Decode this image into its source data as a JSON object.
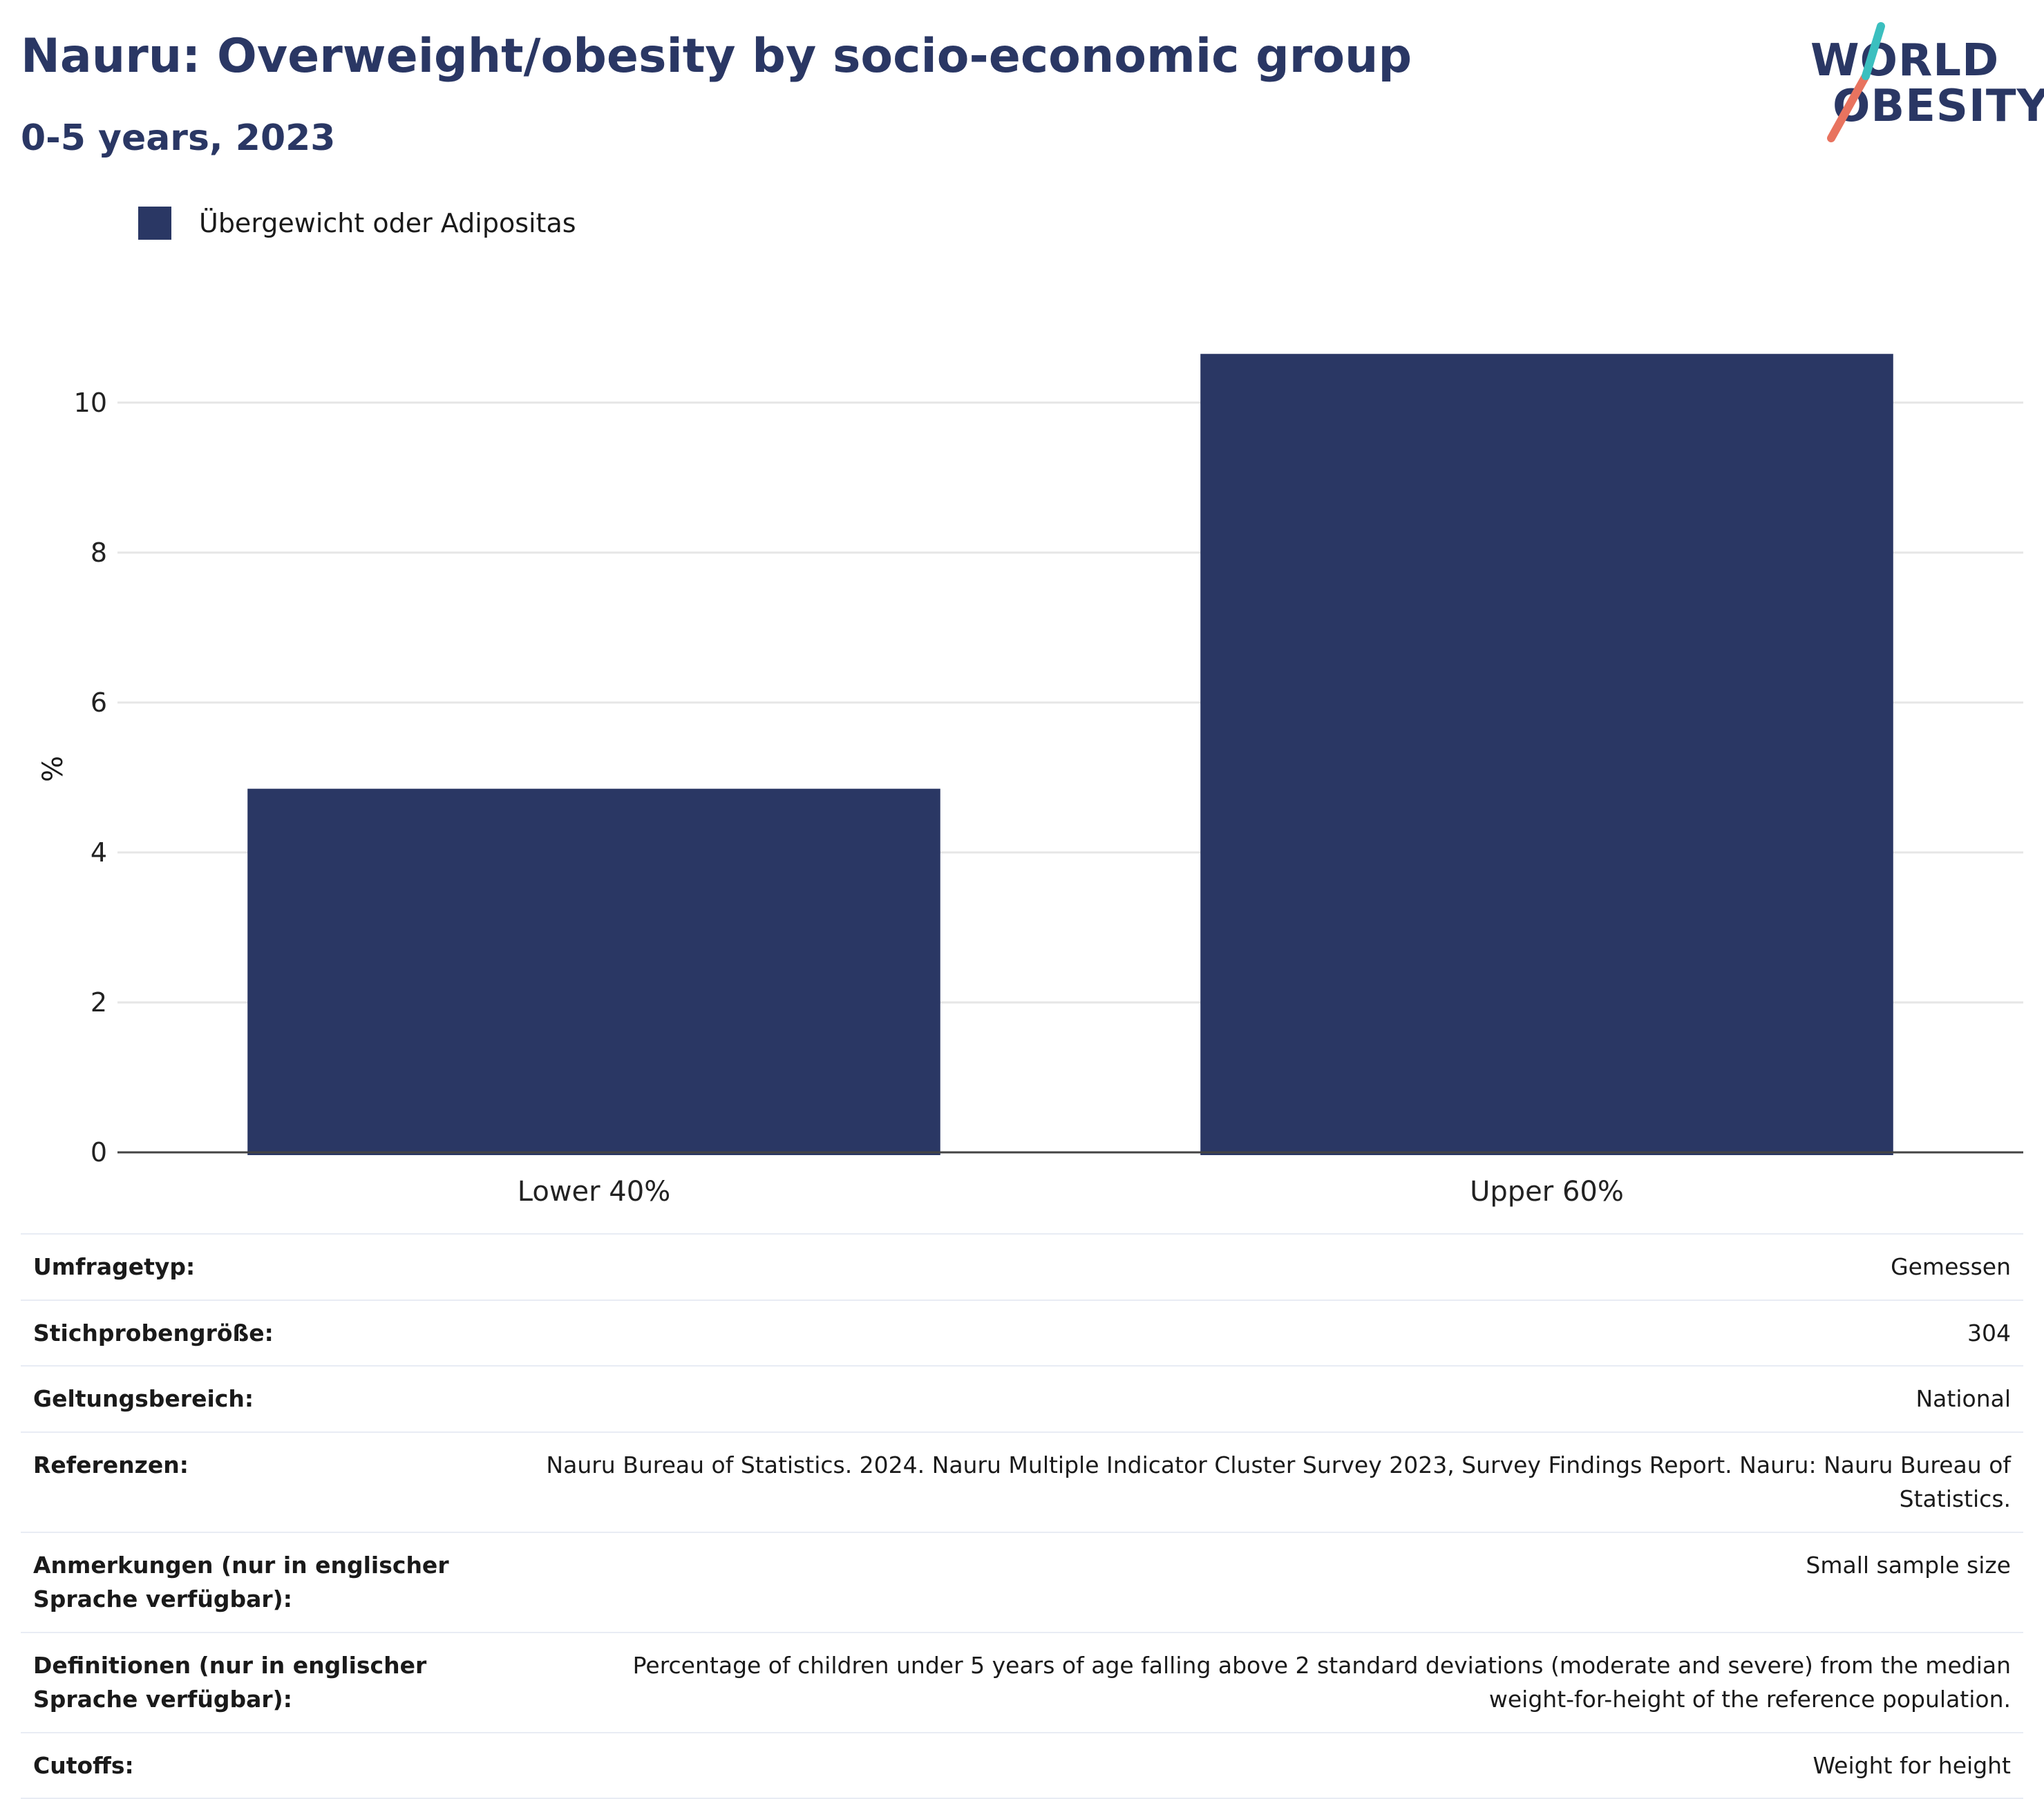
{
  "header": {
    "title": "Nauru: Overweight/obesity by socio-economic group",
    "subtitle": "0-5 years, 2023"
  },
  "logo": {
    "line1": "WORLD",
    "line2": "OBESITY",
    "colors": {
      "text": "#2a3764",
      "teal": "#3bbfbf",
      "coral": "#e8735f"
    }
  },
  "legend": {
    "label": "Übergewicht oder Adipositas",
    "color": "#2a3764"
  },
  "chart_data": {
    "type": "bar",
    "categories": [
      "Lower 40%",
      "Upper 60%"
    ],
    "series": [
      {
        "name": "Übergewicht oder Adipositas",
        "values": [
          4.85,
          10.65
        ],
        "color": "#2a3764"
      }
    ],
    "ylabel": "%",
    "ylim": [
      0,
      11.5
    ],
    "yticks": [
      0,
      2,
      4,
      6,
      8,
      10
    ],
    "grid": true,
    "legend_position": "top-left"
  },
  "details": [
    {
      "label": "Umfragetyp:",
      "value": "Gemessen"
    },
    {
      "label": "Stichprobengröße:",
      "value": "304"
    },
    {
      "label": "Geltungsbereich:",
      "value": "National"
    },
    {
      "label": "Referenzen:",
      "value": "Nauru Bureau of Statistics. 2024. Nauru Multiple Indicator Cluster Survey 2023, Survey Findings Report. Nauru: Nauru Bureau of Statistics."
    },
    {
      "label": "Anmerkungen (nur in englischer Sprache verfügbar):",
      "value": "Small sample size"
    },
    {
      "label": "Definitionen (nur in englischer Sprache verfügbar):",
      "value": "Percentage of children under 5 years of age falling above 2 standard deviations (moderate and severe) from the median weight-for-height of the reference population."
    },
    {
      "label": "Cutoffs:",
      "value": "Weight for height"
    }
  ]
}
